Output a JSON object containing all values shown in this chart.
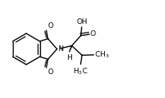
{
  "bg_color": "#ffffff",
  "line_color": "#000000",
  "lw": 1.0,
  "fig_width": 2.07,
  "fig_height": 1.23,
  "dpi": 100,
  "xlim": [
    0,
    10
  ],
  "ylim": [
    0,
    6
  ]
}
